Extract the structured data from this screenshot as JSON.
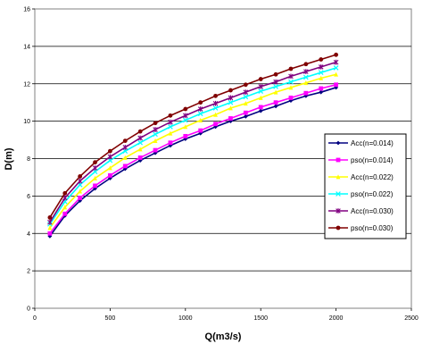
{
  "chart_data": {
    "type": "line",
    "title": "",
    "xlabel": "Q(m3/s)",
    "ylabel": "D(m)",
    "xlim": [
      0,
      2500
    ],
    "ylim": [
      0,
      16
    ],
    "xticks": [
      0,
      500,
      1000,
      1500,
      2000,
      2500
    ],
    "yticks": [
      0,
      2,
      4,
      6,
      8,
      10,
      12,
      14,
      16
    ],
    "grid": "horizontal",
    "legend_position": "right",
    "x": [
      100,
      200,
      300,
      400,
      500,
      600,
      700,
      800,
      900,
      1000,
      1100,
      1200,
      1300,
      1400,
      1500,
      1600,
      1700,
      1800,
      1900,
      2000
    ],
    "series": [
      {
        "name": "Acc(n=0.014)",
        "color": "#000080",
        "marker": "diamond",
        "values": [
          3.85,
          4.95,
          5.75,
          6.4,
          6.95,
          7.45,
          7.9,
          8.3,
          8.7,
          9.05,
          9.35,
          9.7,
          10.0,
          10.25,
          10.55,
          10.8,
          11.1,
          11.35,
          11.55,
          11.8
        ]
      },
      {
        "name": "pso(n=0.014)",
        "color": "#ff00ff",
        "marker": "square",
        "values": [
          4.0,
          5.05,
          5.9,
          6.55,
          7.1,
          7.6,
          8.05,
          8.45,
          8.85,
          9.2,
          9.5,
          9.85,
          10.15,
          10.45,
          10.75,
          11.0,
          11.25,
          11.5,
          11.75,
          11.95
        ]
      },
      {
        "name": "Acc(n=0.022)",
        "color": "#ffff00",
        "marker": "triangle",
        "values": [
          4.3,
          5.4,
          6.25,
          6.95,
          7.5,
          8.05,
          8.5,
          8.95,
          9.35,
          9.7,
          10.05,
          10.35,
          10.7,
          10.95,
          11.25,
          11.55,
          11.8,
          12.05,
          12.3,
          12.5
        ]
      },
      {
        "name": "pso(n=0.022)",
        "color": "#00ffff",
        "marker": "x",
        "values": [
          4.5,
          5.7,
          6.6,
          7.3,
          7.9,
          8.4,
          8.85,
          9.3,
          9.7,
          10.05,
          10.4,
          10.7,
          11.0,
          11.3,
          11.6,
          11.85,
          12.1,
          12.35,
          12.6,
          12.85
        ]
      },
      {
        "name": "Acc(n=0.030)",
        "color": "#800080",
        "marker": "star",
        "values": [
          4.6,
          5.9,
          6.8,
          7.5,
          8.1,
          8.6,
          9.1,
          9.55,
          9.95,
          10.3,
          10.65,
          10.95,
          11.25,
          11.55,
          11.85,
          12.1,
          12.4,
          12.65,
          12.9,
          13.15
        ]
      },
      {
        "name": "pso(n=0.030)",
        "color": "#800000",
        "marker": "circle",
        "values": [
          4.85,
          6.15,
          7.05,
          7.8,
          8.4,
          8.95,
          9.45,
          9.9,
          10.3,
          10.65,
          11.0,
          11.35,
          11.65,
          11.95,
          12.25,
          12.5,
          12.8,
          13.05,
          13.3,
          13.55
        ]
      }
    ]
  }
}
